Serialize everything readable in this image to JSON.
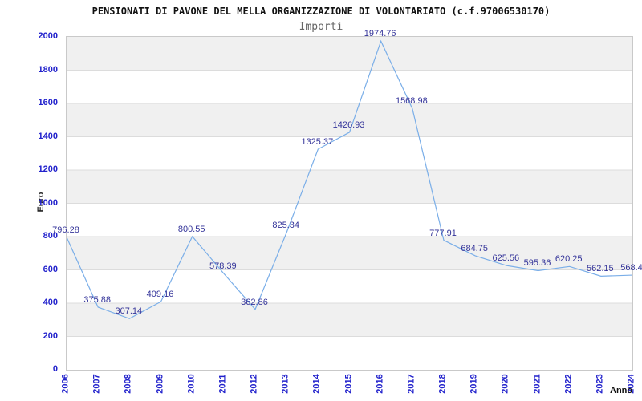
{
  "chart_data": {
    "type": "line",
    "title": "PENSIONATI DI PAVONE DEL MELLA ORGANIZZAZIONE DI VOLONTARIATO (c.f.97006530170)",
    "subtitle": "Importi",
    "xlabel": "Anno",
    "ylabel": "Euro",
    "categories": [
      "2006",
      "2007",
      "2008",
      "2009",
      "2010",
      "2011",
      "2012",
      "2013",
      "2014",
      "2015",
      "2016",
      "2017",
      "2018",
      "2019",
      "2020",
      "2021",
      "2022",
      "2023",
      "2024"
    ],
    "values": [
      796.28,
      375.88,
      307.14,
      409.16,
      800.55,
      578.39,
      362.86,
      825.34,
      1325.37,
      1426.93,
      1974.76,
      1568.98,
      777.91,
      684.75,
      625.56,
      595.36,
      620.25,
      562.15,
      568.4
    ],
    "point_labels": [
      "796.28",
      "375.88",
      "307.14",
      "409.16",
      "800.55",
      "578.39",
      "362.86",
      "825.34",
      "1325.37",
      "1426.93",
      "1974.76",
      "1568.98",
      "777.91",
      "684.75",
      "625.56",
      "595.36",
      "620.25",
      "562.15",
      "568.4"
    ],
    "ylim": [
      0,
      2000
    ],
    "ytick_step": 200,
    "yticks": [
      "0",
      "200",
      "400",
      "600",
      "800",
      "1000",
      "1200",
      "1400",
      "1600",
      "1800",
      "2000"
    ],
    "legend": "none",
    "grid": "horizontal-alternating-bands",
    "colors": {
      "line": "#7aaee8",
      "point_label": "#333399",
      "tick_label": "#2222cc",
      "band": "#f0f0f0",
      "gridline": "#dcdcdc",
      "plot_border": "#c9c9c9",
      "title": "#111111",
      "subtitle": "#666666"
    }
  }
}
